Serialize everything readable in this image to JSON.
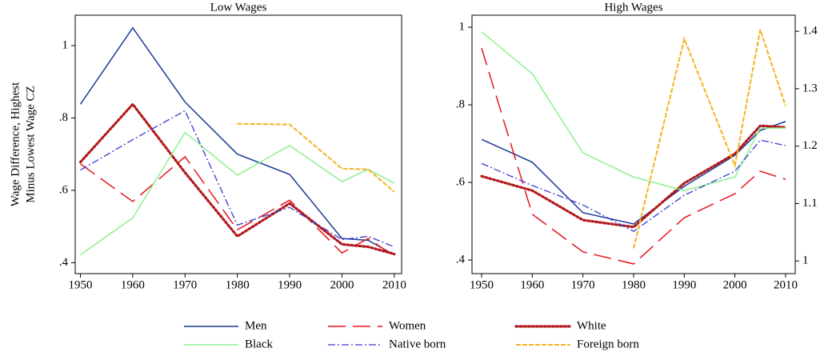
{
  "chart_data": [
    {
      "type": "line",
      "title": "Low Wages",
      "ylabel": [
        "Wage Difference, Highest",
        "Minus Lowest Wage CZ"
      ],
      "x": [
        1950,
        1960,
        1970,
        1980,
        1990,
        2000,
        2005,
        2010
      ],
      "xlim": [
        1949,
        2011.4
      ],
      "xticks": [
        1950,
        1960,
        1970,
        1980,
        1990,
        2000,
        2010
      ],
      "ylim": [
        0.37,
        1.084
      ],
      "yticks": [
        {
          "value": 0.4,
          "label": ".4"
        },
        {
          "value": 0.6,
          "label": ".6"
        },
        {
          "value": 0.8,
          "label": ".8"
        },
        1
      ],
      "series": [
        {
          "name": "Men",
          "color": "#1a3a94",
          "style": "solid",
          "values": [
            0.838,
            1.049,
            0.844,
            0.7,
            0.644,
            0.467,
            0.462,
            0.422
          ]
        },
        {
          "name": "Women",
          "color": "#e8141c",
          "style": "longdash",
          "values": [
            0.673,
            0.569,
            0.693,
            0.491,
            0.573,
            0.427,
            0.467,
            0.418
          ]
        },
        {
          "name": "White",
          "color": "#b3191c",
          "style": "dot",
          "values": [
            0.678,
            0.838,
            0.649,
            0.473,
            0.564,
            0.451,
            0.444,
            0.424
          ]
        },
        {
          "name": "Black",
          "color": "#8ef08e",
          "style": "solid",
          "values": [
            0.422,
            0.524,
            0.76,
            0.642,
            0.724,
            0.624,
            0.658,
            0.62
          ]
        },
        {
          "name": "Native born",
          "color": "#3a3ad0",
          "style": "dashdot",
          "values": [
            0.656,
            0.74,
            0.82,
            0.504,
            0.553,
            0.464,
            0.473,
            0.444
          ]
        },
        {
          "name": "Foreign born",
          "color": "#f5b41c",
          "style": "shortdash",
          "values": [
            null,
            null,
            null,
            0.784,
            0.782,
            0.66,
            0.658,
            0.596
          ]
        }
      ]
    },
    {
      "type": "line",
      "title": "High Wages",
      "x": [
        1950,
        1960,
        1970,
        1980,
        1990,
        2000,
        2005,
        2010
      ],
      "xlim": [
        1948.1,
        2011.9
      ],
      "xticks": [
        1950,
        1960,
        1970,
        1980,
        1990,
        2000,
        2010
      ],
      "ylim": [
        0.365,
        1.031
      ],
      "yticks": [
        {
          "value": 0.4,
          "label": ".4"
        },
        {
          "value": 0.6,
          "label": ".6"
        },
        {
          "value": 0.8,
          "label": ".8"
        },
        1
      ],
      "y2lim": [
        0.978,
        1.428
      ],
      "y2ticks": [
        1,
        1.1,
        1.2,
        1.3,
        1.4
      ],
      "series": [
        {
          "name": "Men",
          "color": "#1a3a94",
          "style": "solid",
          "values": [
            0.711,
            0.652,
            0.522,
            0.493,
            0.59,
            0.67,
            0.734,
            0.757
          ]
        },
        {
          "name": "Women",
          "color": "#e8141c",
          "style": "longdash",
          "values": [
            0.946,
            0.518,
            0.421,
            0.39,
            0.509,
            0.571,
            0.629,
            0.608
          ]
        },
        {
          "name": "White",
          "color": "#b3191c",
          "style": "dot",
          "values": [
            0.616,
            0.579,
            0.503,
            0.485,
            0.598,
            0.674,
            0.746,
            0.742
          ]
        },
        {
          "name": "Black",
          "color": "#8ef08e",
          "style": "solid",
          "values": [
            0.988,
            0.88,
            0.676,
            0.614,
            0.579,
            0.614,
            0.74,
            0.74
          ]
        },
        {
          "name": "Native born",
          "color": "#3a3ad0",
          "style": "dashdot",
          "values": [
            0.649,
            0.592,
            0.542,
            0.474,
            0.567,
            0.629,
            0.709,
            0.695
          ]
        },
        {
          "name": "Foreign born",
          "color": "#f5b41c",
          "style": "shortdash",
          "axis": "y2",
          "values": [
            null,
            null,
            null,
            1.022,
            1.387,
            1.166,
            1.403,
            1.27
          ]
        }
      ]
    }
  ]
}
